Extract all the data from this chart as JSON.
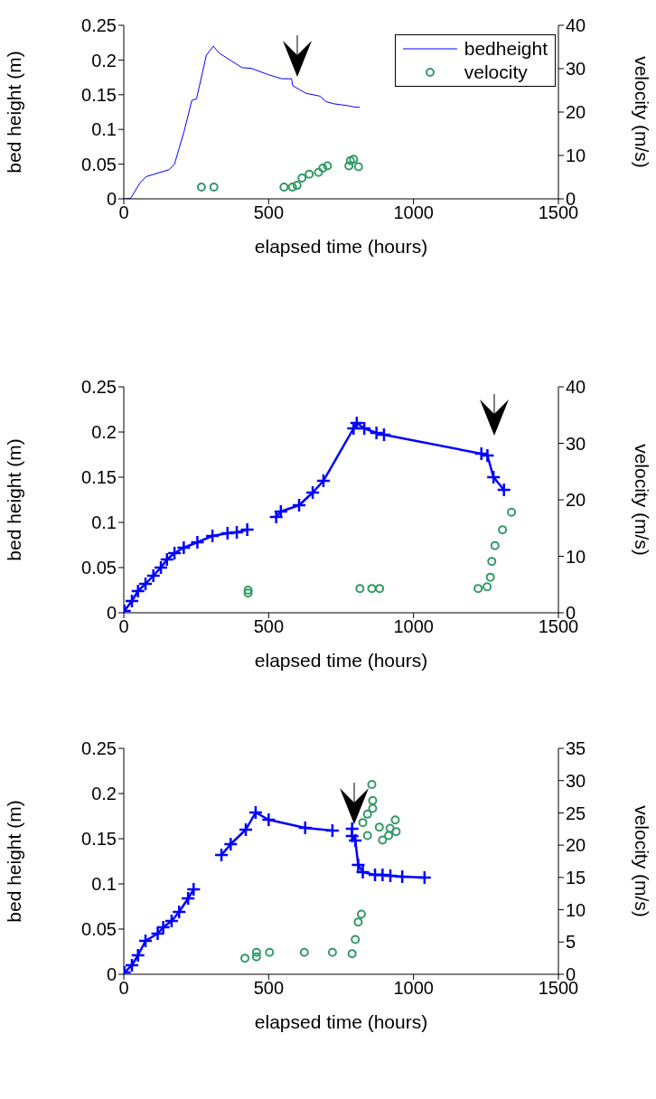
{
  "chart_data": [
    {
      "type": "line",
      "xlabel": "elapsed time (hours)",
      "ylabel": "bed height (m)",
      "y2label": "velocity (m/s)",
      "xlim": [
        0,
        1500
      ],
      "xticks": [
        0,
        500,
        1000,
        1500
      ],
      "ylim": [
        0,
        0.25
      ],
      "yticks": [
        0,
        0.05,
        0.1,
        0.15,
        0.2,
        0.25
      ],
      "y2lim": [
        0,
        40
      ],
      "y2ticks": [
        0,
        10,
        20,
        30,
        40
      ],
      "legend": "top right",
      "series": [
        {
          "name": "bedheight",
          "marker": "none",
          "color": "#0000ff",
          "x": [
            0,
            24,
            56,
            77,
            156,
            175,
            208,
            235,
            251,
            285,
            309,
            329,
            408,
            440,
            498,
            545,
            579,
            583,
            629,
            677,
            698,
            724,
            777,
            798,
            814
          ],
          "values": [
            0,
            0.001,
            0.023,
            0.032,
            0.042,
            0.05,
            0.097,
            0.142,
            0.144,
            0.207,
            0.22,
            0.21,
            0.189,
            0.188,
            0.179,
            0.173,
            0.173,
            0.163,
            0.152,
            0.148,
            0.14,
            0.137,
            0.134,
            0.132,
            0.132
          ]
        },
        {
          "name": "velocity",
          "type": "scatter",
          "marker": "circle",
          "axis": "y2",
          "color": "#339966",
          "x": [
            268,
            311,
            553,
            582,
            598,
            615,
            640,
            672,
            687,
            703,
            777,
            782,
            793,
            810
          ],
          "values": [
            2.7,
            2.7,
            2.7,
            2.7,
            3.1,
            4.8,
            5.7,
            6.1,
            7.1,
            7.6,
            7.6,
            8.8,
            9.1,
            7.4
          ]
        }
      ]
    },
    {
      "type": "line",
      "xlabel": "elapsed time (hours)",
      "ylabel": "bed height (m)",
      "y2label": "velocity (m/s)",
      "xlim": [
        0,
        1500
      ],
      "xticks": [
        0,
        500,
        1000,
        1500
      ],
      "ylim": [
        0,
        0.25
      ],
      "yticks": [
        0,
        0.05,
        0.1,
        0.15,
        0.2,
        0.25
      ],
      "y2lim": [
        0,
        40
      ],
      "y2ticks": [
        0,
        10,
        20,
        30,
        40
      ],
      "series": [
        {
          "marker": "cross",
          "color": "#0000ff",
          "x": [
            2,
            28,
            49,
            75,
            102,
            128,
            149,
            175,
            207,
            254,
            306,
            358,
            390,
            426,
            470,
            526,
            542,
            605,
            652,
            689,
            793,
            804,
            830,
            872,
            898,
            1234,
            1255,
            1276,
            1312
          ],
          "values": [
            0.002,
            0.013,
            0.024,
            0.032,
            0.041,
            0.05,
            0.059,
            0.066,
            0.072,
            0.078,
            0.085,
            0.088,
            0.089,
            0.092,
            null,
            0.106,
            0.112,
            0.119,
            0.133,
            0.146,
            0.204,
            0.21,
            0.204,
            0.199,
            0.197,
            0.176,
            0.174,
            0.15,
            0.136
          ]
        },
        {
          "type": "scatter",
          "marker": "circle",
          "axis": "y2",
          "color": "#339966",
          "x": [
            429,
            429,
            815,
            856,
            883,
            1223,
            1254,
            1265,
            1270,
            1281,
            1307,
            1338
          ],
          "values": [
            4.0,
            3.5,
            4.3,
            4.3,
            4.3,
            4.3,
            4.6,
            6.3,
            9.1,
            11.9,
            14.7,
            17.8
          ]
        }
      ]
    },
    {
      "type": "line",
      "xlabel": "elapsed time (hours)",
      "ylabel": "bed height (m)",
      "y2label": "velocity (m/s)",
      "xlim": [
        0,
        1500
      ],
      "xticks": [
        0,
        500,
        1000,
        1500
      ],
      "ylim": [
        0,
        0.25
      ],
      "yticks": [
        0,
        0.05,
        0.1,
        0.15,
        0.2,
        0.25
      ],
      "y2lim": [
        0,
        35
      ],
      "y2ticks": [
        0,
        5,
        10,
        15,
        20,
        25,
        30,
        35
      ],
      "series": [
        {
          "marker": "cross",
          "color": "#0000ff",
          "x": [
            2,
            28,
            49,
            75,
            117,
            136,
            165,
            191,
            222,
            241,
            290,
            337,
            369,
            421,
            455,
            500,
            626,
            720,
            750,
            788,
            788,
            799,
            809,
            825,
            867,
            893,
            920,
            961,
            1038
          ],
          "values": [
            0.002,
            0.01,
            0.021,
            0.037,
            0.045,
            0.052,
            0.059,
            0.069,
            0.084,
            0.094,
            null,
            0.132,
            0.144,
            0.16,
            0.179,
            0.171,
            0.162,
            0.159,
            null,
            0.161,
            0.153,
            0.148,
            0.121,
            0.113,
            0.11,
            0.11,
            0.109,
            0.108,
            0.107
          ]
        },
        {
          "type": "scatter",
          "marker": "circle",
          "axis": "y2",
          "color": "#339966",
          "x": [
            418,
            458,
            458,
            503,
            623,
            720,
            788,
            799,
            809,
            820,
            856,
            859,
            859,
            841,
            825,
            841,
            893,
            882,
            919,
            937,
            940,
            914
          ],
          "values": [
            2.5,
            2.7,
            3.4,
            3.4,
            3.4,
            3.4,
            3.2,
            5.4,
            8.1,
            9.3,
            29.4,
            26.9,
            25.7,
            24.8,
            23.5,
            21.5,
            20.8,
            22.8,
            22.6,
            23.9,
            22.1,
            21.5
          ]
        }
      ]
    }
  ]
}
